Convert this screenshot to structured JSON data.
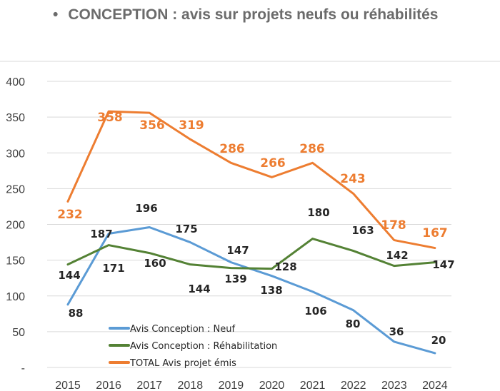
{
  "title": "CONCEPTION : avis sur projets neufs ou réhabilités",
  "bullet": "•",
  "chart_data": {
    "type": "line",
    "x": [
      "2015",
      "2016",
      "2017",
      "2018",
      "2019",
      "2020",
      "2021",
      "2022",
      "2023",
      "2024"
    ],
    "ylim": [
      0,
      400
    ],
    "yticks": [
      0,
      50,
      100,
      150,
      200,
      250,
      300,
      350,
      400
    ],
    "ytick_labels": [
      "-",
      "50",
      "100",
      "150",
      "200",
      "250",
      "300",
      "350",
      "400"
    ],
    "grid": true,
    "legend_placement": "bottom-center inside",
    "series": [
      {
        "name": "Avis Conception : Neuf",
        "color": "#5b9bd5",
        "values": [
          88,
          187,
          196,
          175,
          147,
          128,
          106,
          80,
          36,
          20
        ]
      },
      {
        "name": "Avis Conception : Réhabilitation",
        "color": "#548235",
        "values": [
          144,
          171,
          160,
          144,
          139,
          138,
          180,
          163,
          142,
          147
        ]
      },
      {
        "name": "TOTAL Avis projet émis",
        "color": "#ed7d31",
        "values": [
          232,
          358,
          356,
          319,
          286,
          266,
          286,
          243,
          178,
          167
        ]
      }
    ]
  }
}
